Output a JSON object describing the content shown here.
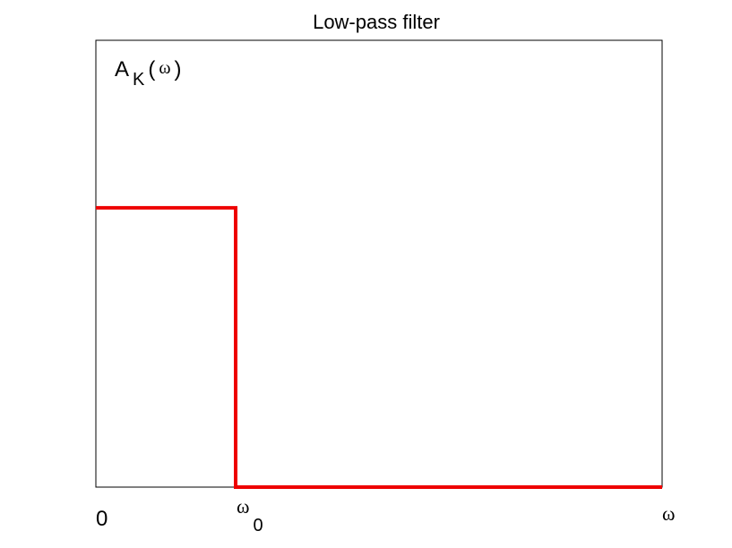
{
  "chart_data": {
    "type": "line",
    "title": "Low-pass filter",
    "ylabel": {
      "base": "A",
      "subscript": "K",
      "open": "(",
      "arg": "ω",
      "close": ")"
    },
    "xlabel": "ω",
    "xticks": [
      {
        "value": 0,
        "label": "0"
      },
      {
        "value": 1,
        "label_base": "ω",
        "label_sub": "0"
      }
    ],
    "xlim": [
      0,
      4.05
    ],
    "ylim": [
      0,
      1.6
    ],
    "grid": false,
    "series": [
      {
        "color": "#ee0000",
        "points": [
          [
            0,
            1
          ],
          [
            1,
            1
          ],
          [
            1,
            0
          ],
          [
            4.05,
            0
          ]
        ]
      }
    ]
  }
}
